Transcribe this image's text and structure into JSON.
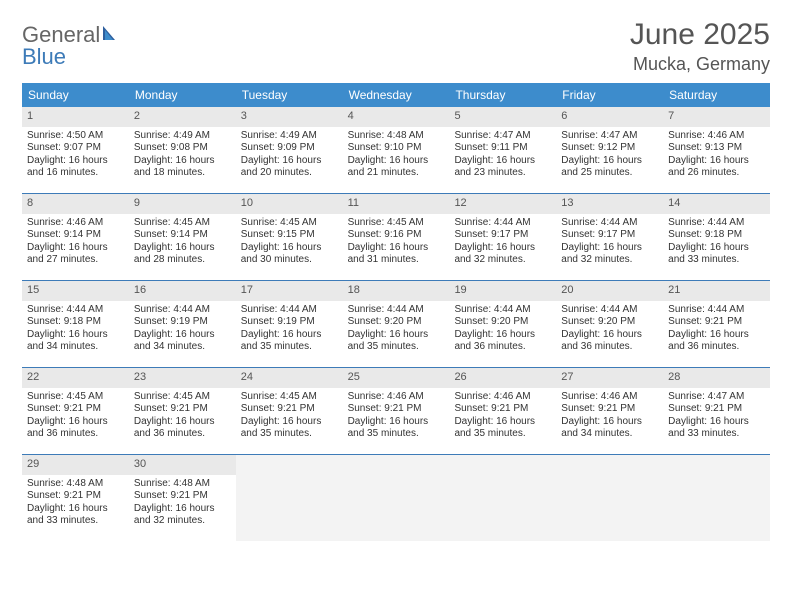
{
  "logo": {
    "word1": "General",
    "word2": "Blue"
  },
  "title": "June 2025",
  "location": "Mucka, Germany",
  "colors": {
    "header_bg": "#3d8ccc",
    "header_text": "#ffffff",
    "row_border": "#3d7bb8",
    "daynum_bg": "#e9e9e9",
    "empty_bg": "#f3f3f3",
    "text": "#333333",
    "title_text": "#555555",
    "logo_gray": "#666666",
    "logo_blue": "#3d7bb8"
  },
  "day_headers": [
    "Sunday",
    "Monday",
    "Tuesday",
    "Wednesday",
    "Thursday",
    "Friday",
    "Saturday"
  ],
  "weeks": [
    [
      {
        "n": "1",
        "sr": "4:50 AM",
        "ss": "9:07 PM",
        "dl": "16 hours and 16 minutes."
      },
      {
        "n": "2",
        "sr": "4:49 AM",
        "ss": "9:08 PM",
        "dl": "16 hours and 18 minutes."
      },
      {
        "n": "3",
        "sr": "4:49 AM",
        "ss": "9:09 PM",
        "dl": "16 hours and 20 minutes."
      },
      {
        "n": "4",
        "sr": "4:48 AM",
        "ss": "9:10 PM",
        "dl": "16 hours and 21 minutes."
      },
      {
        "n": "5",
        "sr": "4:47 AM",
        "ss": "9:11 PM",
        "dl": "16 hours and 23 minutes."
      },
      {
        "n": "6",
        "sr": "4:47 AM",
        "ss": "9:12 PM",
        "dl": "16 hours and 25 minutes."
      },
      {
        "n": "7",
        "sr": "4:46 AM",
        "ss": "9:13 PM",
        "dl": "16 hours and 26 minutes."
      }
    ],
    [
      {
        "n": "8",
        "sr": "4:46 AM",
        "ss": "9:14 PM",
        "dl": "16 hours and 27 minutes."
      },
      {
        "n": "9",
        "sr": "4:45 AM",
        "ss": "9:14 PM",
        "dl": "16 hours and 28 minutes."
      },
      {
        "n": "10",
        "sr": "4:45 AM",
        "ss": "9:15 PM",
        "dl": "16 hours and 30 minutes."
      },
      {
        "n": "11",
        "sr": "4:45 AM",
        "ss": "9:16 PM",
        "dl": "16 hours and 31 minutes."
      },
      {
        "n": "12",
        "sr": "4:44 AM",
        "ss": "9:17 PM",
        "dl": "16 hours and 32 minutes."
      },
      {
        "n": "13",
        "sr": "4:44 AM",
        "ss": "9:17 PM",
        "dl": "16 hours and 32 minutes."
      },
      {
        "n": "14",
        "sr": "4:44 AM",
        "ss": "9:18 PM",
        "dl": "16 hours and 33 minutes."
      }
    ],
    [
      {
        "n": "15",
        "sr": "4:44 AM",
        "ss": "9:18 PM",
        "dl": "16 hours and 34 minutes."
      },
      {
        "n": "16",
        "sr": "4:44 AM",
        "ss": "9:19 PM",
        "dl": "16 hours and 34 minutes."
      },
      {
        "n": "17",
        "sr": "4:44 AM",
        "ss": "9:19 PM",
        "dl": "16 hours and 35 minutes."
      },
      {
        "n": "18",
        "sr": "4:44 AM",
        "ss": "9:20 PM",
        "dl": "16 hours and 35 minutes."
      },
      {
        "n": "19",
        "sr": "4:44 AM",
        "ss": "9:20 PM",
        "dl": "16 hours and 36 minutes."
      },
      {
        "n": "20",
        "sr": "4:44 AM",
        "ss": "9:20 PM",
        "dl": "16 hours and 36 minutes."
      },
      {
        "n": "21",
        "sr": "4:44 AM",
        "ss": "9:21 PM",
        "dl": "16 hours and 36 minutes."
      }
    ],
    [
      {
        "n": "22",
        "sr": "4:45 AM",
        "ss": "9:21 PM",
        "dl": "16 hours and 36 minutes."
      },
      {
        "n": "23",
        "sr": "4:45 AM",
        "ss": "9:21 PM",
        "dl": "16 hours and 36 minutes."
      },
      {
        "n": "24",
        "sr": "4:45 AM",
        "ss": "9:21 PM",
        "dl": "16 hours and 35 minutes."
      },
      {
        "n": "25",
        "sr": "4:46 AM",
        "ss": "9:21 PM",
        "dl": "16 hours and 35 minutes."
      },
      {
        "n": "26",
        "sr": "4:46 AM",
        "ss": "9:21 PM",
        "dl": "16 hours and 35 minutes."
      },
      {
        "n": "27",
        "sr": "4:46 AM",
        "ss": "9:21 PM",
        "dl": "16 hours and 34 minutes."
      },
      {
        "n": "28",
        "sr": "4:47 AM",
        "ss": "9:21 PM",
        "dl": "16 hours and 33 minutes."
      }
    ],
    [
      {
        "n": "29",
        "sr": "4:48 AM",
        "ss": "9:21 PM",
        "dl": "16 hours and 33 minutes."
      },
      {
        "n": "30",
        "sr": "4:48 AM",
        "ss": "9:21 PM",
        "dl": "16 hours and 32 minutes."
      },
      null,
      null,
      null,
      null,
      null
    ]
  ],
  "labels": {
    "sunrise": "Sunrise: ",
    "sunset": "Sunset: ",
    "daylight": "Daylight: "
  }
}
